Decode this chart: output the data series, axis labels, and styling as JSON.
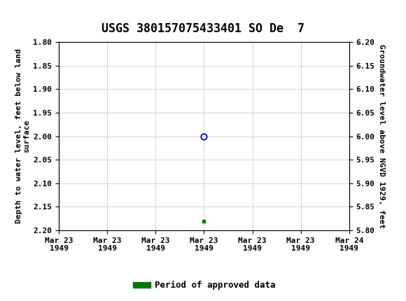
{
  "title": "USGS 380157075433401 SO De  7",
  "left_ylabel": "Depth to water level, feet below land\nsurface",
  "right_ylabel": "Groundwater level above NGVD 1929, feet",
  "ylim_left_top": 1.8,
  "ylim_left_bottom": 2.2,
  "ylim_right_top": 6.2,
  "ylim_right_bottom": 5.8,
  "left_yticks": [
    1.8,
    1.85,
    1.9,
    1.95,
    2.0,
    2.05,
    2.1,
    2.15,
    2.2
  ],
  "right_yticks": [
    6.2,
    6.15,
    6.1,
    6.05,
    6.0,
    5.95,
    5.9,
    5.85,
    5.8
  ],
  "data_point_x_hour": 12,
  "data_point_y": 2.0,
  "green_point_x_hour": 12,
  "green_point_y": 2.18,
  "xmin_hour": 0,
  "xmax_hour": 24,
  "xtick_hours": [
    0,
    4,
    8,
    12,
    16,
    20,
    24
  ],
  "xlabels": [
    "Mar 23\n1949",
    "Mar 23\n1949",
    "Mar 23\n1949",
    "Mar 23\n1949",
    "Mar 23\n1949",
    "Mar 23\n1949",
    "Mar 24\n1949"
  ],
  "header_bg_color": "#1a6b3c",
  "header_text_color": "#ffffff",
  "plot_bg_color": "#ffffff",
  "grid_color": "#cccccc",
  "data_marker_color": "#0000cc",
  "green_marker_color": "#007700",
  "legend_label": "Period of approved data",
  "legend_color": "#007700",
  "title_fontsize": 12,
  "axis_label_fontsize": 8,
  "tick_fontsize": 8
}
